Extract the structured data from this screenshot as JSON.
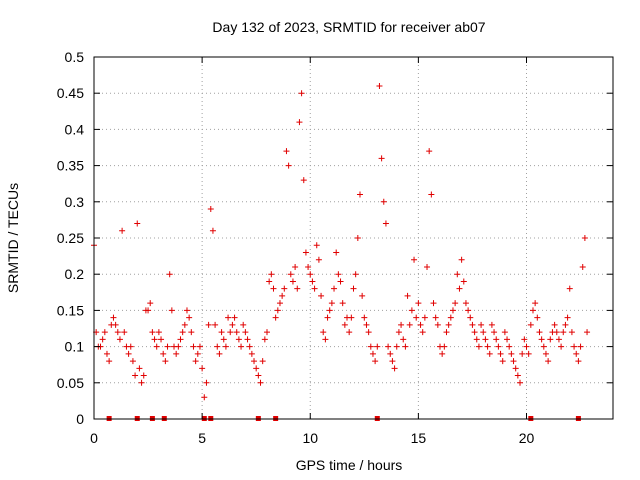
{
  "chart_data": {
    "type": "scatter",
    "title": "Day 132 of 2023, SRMTID for receiver ab07",
    "xlabel": "GPS time / hours",
    "ylabel": "SRMTID / TECUs",
    "xlim": [
      0,
      24
    ],
    "ylim": [
      0,
      0.5
    ],
    "xticks": [
      0,
      5,
      10,
      15,
      20
    ],
    "yticks": [
      0,
      0.05,
      0.1,
      0.15,
      0.2,
      0.25,
      0.3,
      0.35,
      0.4,
      0.45,
      0.5
    ],
    "grid": true,
    "marker": "plus",
    "color": "#e00000",
    "series": [
      {
        "name": "SRMTID",
        "x": [
          0.0,
          0.1,
          0.2,
          0.3,
          0.4,
          0.5,
          0.6,
          0.7,
          0.8,
          0.9,
          1.0,
          1.1,
          1.2,
          1.3,
          1.4,
          1.5,
          1.6,
          1.7,
          1.8,
          1.9,
          2.0,
          2.1,
          2.2,
          2.3,
          2.4,
          2.5,
          2.6,
          2.7,
          2.8,
          2.9,
          3.0,
          3.1,
          3.2,
          3.3,
          3.4,
          3.5,
          3.6,
          3.7,
          3.8,
          3.9,
          4.0,
          4.1,
          4.2,
          4.3,
          4.4,
          4.5,
          4.6,
          4.7,
          4.8,
          4.9,
          5.0,
          5.1,
          5.2,
          5.3,
          5.4,
          5.5,
          5.6,
          5.7,
          5.8,
          5.9,
          6.0,
          6.1,
          6.2,
          6.3,
          6.4,
          6.5,
          6.6,
          6.7,
          6.8,
          6.9,
          7.0,
          7.1,
          7.2,
          7.3,
          7.4,
          7.5,
          7.6,
          7.7,
          7.8,
          7.9,
          8.0,
          8.1,
          8.2,
          8.3,
          8.4,
          8.5,
          8.6,
          8.7,
          8.8,
          8.9,
          9.0,
          9.1,
          9.2,
          9.3,
          9.4,
          9.5,
          9.6,
          9.7,
          9.8,
          9.9,
          10.0,
          10.1,
          10.2,
          10.3,
          10.4,
          10.5,
          10.6,
          10.7,
          10.8,
          10.9,
          11.0,
          11.1,
          11.2,
          11.3,
          11.4,
          11.5,
          11.6,
          11.7,
          11.8,
          11.9,
          12.0,
          12.1,
          12.2,
          12.3,
          12.4,
          12.5,
          12.6,
          12.7,
          12.8,
          12.9,
          13.0,
          13.1,
          13.2,
          13.3,
          13.4,
          13.5,
          13.6,
          13.7,
          13.8,
          13.9,
          14.0,
          14.1,
          14.2,
          14.3,
          14.4,
          14.5,
          14.6,
          14.7,
          14.8,
          14.9,
          15.0,
          15.1,
          15.2,
          15.3,
          15.4,
          15.5,
          15.6,
          15.7,
          15.8,
          15.9,
          16.0,
          16.1,
          16.2,
          16.3,
          16.4,
          16.5,
          16.6,
          16.7,
          16.8,
          16.9,
          17.0,
          17.1,
          17.2,
          17.3,
          17.4,
          17.5,
          17.6,
          17.7,
          17.8,
          17.9,
          18.0,
          18.1,
          18.2,
          18.3,
          18.4,
          18.5,
          18.6,
          18.7,
          18.8,
          18.9,
          19.0,
          19.1,
          19.2,
          19.3,
          19.4,
          19.5,
          19.6,
          19.7,
          19.8,
          19.9,
          20.0,
          20.1,
          20.2,
          20.3,
          20.4,
          20.5,
          20.6,
          20.7,
          20.8,
          20.9,
          21.0,
          21.1,
          21.2,
          21.3,
          21.4,
          21.5,
          21.6,
          21.7,
          21.8,
          21.9,
          22.0,
          22.1,
          22.2,
          22.3,
          22.4,
          22.5,
          22.6,
          22.7,
          22.8
        ],
        "y": [
          0.24,
          0.12,
          0.1,
          0.1,
          0.11,
          0.12,
          0.09,
          0.08,
          0.13,
          0.14,
          0.13,
          0.12,
          0.11,
          0.26,
          0.12,
          0.1,
          0.09,
          0.1,
          0.08,
          0.06,
          0.27,
          0.07,
          0.05,
          0.06,
          0.15,
          0.15,
          0.16,
          0.12,
          0.11,
          0.1,
          0.12,
          0.11,
          0.09,
          0.08,
          0.1,
          0.2,
          0.15,
          0.1,
          0.09,
          0.1,
          0.11,
          0.12,
          0.13,
          0.15,
          0.14,
          0.12,
          0.1,
          0.08,
          0.09,
          0.1,
          0.07,
          0.03,
          0.05,
          0.13,
          0.29,
          0.26,
          0.13,
          0.1,
          0.09,
          0.12,
          0.11,
          0.1,
          0.14,
          0.12,
          0.13,
          0.14,
          0.12,
          0.11,
          0.1,
          0.13,
          0.12,
          0.11,
          0.1,
          0.09,
          0.08,
          0.07,
          0.06,
          0.05,
          0.08,
          0.11,
          0.12,
          0.19,
          0.2,
          0.18,
          0.14,
          0.15,
          0.16,
          0.17,
          0.18,
          0.37,
          0.35,
          0.2,
          0.19,
          0.21,
          0.18,
          0.41,
          0.45,
          0.33,
          0.23,
          0.21,
          0.2,
          0.19,
          0.18,
          0.24,
          0.22,
          0.17,
          0.12,
          0.11,
          0.14,
          0.15,
          0.16,
          0.18,
          0.23,
          0.2,
          0.19,
          0.16,
          0.13,
          0.14,
          0.12,
          0.14,
          0.18,
          0.2,
          0.25,
          0.31,
          0.17,
          0.14,
          0.13,
          0.12,
          0.1,
          0.09,
          0.08,
          0.1,
          0.46,
          0.36,
          0.3,
          0.27,
          0.1,
          0.09,
          0.08,
          0.07,
          0.1,
          0.12,
          0.13,
          0.11,
          0.1,
          0.17,
          0.13,
          0.15,
          0.22,
          0.14,
          0.16,
          0.13,
          0.12,
          0.14,
          0.21,
          0.37,
          0.31,
          0.16,
          0.14,
          0.13,
          0.1,
          0.09,
          0.1,
          0.12,
          0.13,
          0.14,
          0.15,
          0.16,
          0.2,
          0.18,
          0.22,
          0.19,
          0.16,
          0.15,
          0.14,
          0.13,
          0.12,
          0.11,
          0.1,
          0.13,
          0.12,
          0.11,
          0.1,
          0.09,
          0.13,
          0.12,
          0.11,
          0.1,
          0.09,
          0.08,
          0.12,
          0.11,
          0.1,
          0.09,
          0.08,
          0.07,
          0.06,
          0.05,
          0.09,
          0.11,
          0.1,
          0.09,
          0.13,
          0.15,
          0.16,
          0.14,
          0.12,
          0.11,
          0.1,
          0.09,
          0.08,
          0.11,
          0.12,
          0.13,
          0.12,
          0.11,
          0.1,
          0.12,
          0.13,
          0.14,
          0.18,
          0.12,
          0.1,
          0.09,
          0.08,
          0.1,
          0.21,
          0.25,
          0.12
        ]
      }
    ],
    "zero_marks_x": [
      0.7,
      2.0,
      2.7,
      3.25,
      5.1,
      5.4,
      7.6,
      8.4,
      13.1,
      20.2,
      22.4
    ]
  }
}
